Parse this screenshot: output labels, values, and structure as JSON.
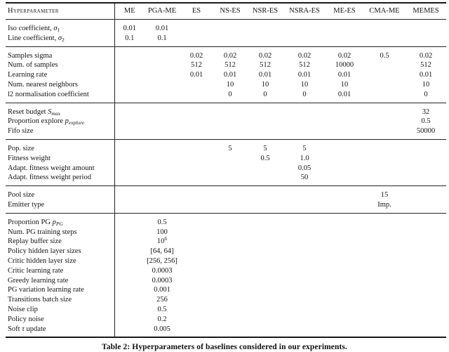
{
  "caption": "Table 2: Hyperparameters of baselines considered in our experiments.",
  "table": {
    "header": [
      "Hyperparameter",
      "ME",
      "PGA-ME",
      "ES",
      "NS-ES",
      "NSR-ES",
      "NSRA-ES",
      "ME-ES",
      "CMA-ME",
      "MEMES"
    ],
    "sections": [
      {
        "rows": [
          {
            "label": "Iso coefficient, <i>&sigma;</i><sub>1</sub>",
            "values": [
              "0.01",
              "0.01",
              "",
              "",
              "",
              "",
              "",
              "",
              ""
            ]
          },
          {
            "label": "Line coefficient, <i>&sigma;</i><sub>2</sub>",
            "values": [
              "0.1",
              "0.1",
              "",
              "",
              "",
              "",
              "",
              "",
              ""
            ]
          }
        ]
      },
      {
        "rows": [
          {
            "label": "Samples sigma",
            "values": [
              "",
              "",
              "0.02",
              "0.02",
              "0.02",
              "0.02",
              "0.02",
              "0.5",
              "0.02"
            ]
          },
          {
            "label": "Num. of samples",
            "values": [
              "",
              "",
              "512",
              "512",
              "512",
              "512",
              "10000",
              "",
              "512"
            ]
          },
          {
            "label": "Learning rate",
            "values": [
              "",
              "",
              "0.01",
              "0.01",
              "0.01",
              "0.01",
              "0.01",
              "",
              "0.01"
            ]
          },
          {
            "label": "Num. nearest neighbors",
            "values": [
              "",
              "",
              "",
              "10",
              "10",
              "10",
              "10",
              "",
              "10"
            ]
          },
          {
            "label": "l2 normalisation coefficient",
            "values": [
              "",
              "",
              "",
              "0",
              "0",
              "0",
              "0.01",
              "",
              "0"
            ]
          }
        ]
      },
      {
        "rows": [
          {
            "label": "Reset budget <i>S<sub>max</sub></i>",
            "values": [
              "",
              "",
              "",
              "",
              "",
              "",
              "",
              "",
              "32"
            ]
          },
          {
            "label": "Proportion explore <i>p<sub>explore</sub></i>",
            "values": [
              "",
              "",
              "",
              "",
              "",
              "",
              "",
              "",
              "0.5"
            ]
          },
          {
            "label": "Fifo size",
            "values": [
              "",
              "",
              "",
              "",
              "",
              "",
              "",
              "",
              "50000"
            ]
          }
        ]
      },
      {
        "rows": [
          {
            "label": "Pop. size",
            "values": [
              "",
              "",
              "",
              "5",
              "5",
              "5",
              "",
              "",
              ""
            ]
          },
          {
            "label": "Fitness weight",
            "values": [
              "",
              "",
              "",
              "",
              "0.5",
              "1.0",
              "",
              "",
              ""
            ]
          },
          {
            "label": "Adapt. fitness weight amount",
            "values": [
              "",
              "",
              "",
              "",
              "",
              "0.05",
              "",
              "",
              ""
            ]
          },
          {
            "label": "Adapt. fitness weight period",
            "values": [
              "",
              "",
              "",
              "",
              "",
              "50",
              "",
              "",
              ""
            ]
          }
        ]
      },
      {
        "rows": [
          {
            "label": "Pool size",
            "values": [
              "",
              "",
              "",
              "",
              "",
              "",
              "",
              "15",
              ""
            ]
          },
          {
            "label": "Emitter type",
            "values": [
              "",
              "",
              "",
              "",
              "",
              "",
              "",
              "Imp.",
              ""
            ]
          }
        ]
      },
      {
        "rows": [
          {
            "label": "Proportion PG <i>p<sub>PG</sub></i>",
            "values": [
              "",
              "0.5",
              "",
              "",
              "",
              "",
              "",
              "",
              ""
            ]
          },
          {
            "label": "Num. PG training steps",
            "values": [
              "",
              "100",
              "",
              "",
              "",
              "",
              "",
              "",
              ""
            ]
          },
          {
            "label": "Replay buffer size",
            "values": [
              "",
              "10<sup>6</sup>",
              "",
              "",
              "",
              "",
              "",
              "",
              ""
            ]
          },
          {
            "label": "Policy hidden layer sizes",
            "values": [
              "",
              "[64, 64]",
              "",
              "",
              "",
              "",
              "",
              "",
              ""
            ]
          },
          {
            "label": "Critic hidden layer size",
            "values": [
              "",
              "[256, 256]",
              "",
              "",
              "",
              "",
              "",
              "",
              ""
            ]
          },
          {
            "label": "Critic learning rate",
            "values": [
              "",
              "0.0003",
              "",
              "",
              "",
              "",
              "",
              "",
              ""
            ]
          },
          {
            "label": "Greedy learning rate",
            "values": [
              "",
              "0.0003",
              "",
              "",
              "",
              "",
              "",
              "",
              ""
            ]
          },
          {
            "label": "PG variation learning rate",
            "values": [
              "",
              "0.001",
              "",
              "",
              "",
              "",
              "",
              "",
              ""
            ]
          },
          {
            "label": "Transitions batch size",
            "values": [
              "",
              "256",
              "",
              "",
              "",
              "",
              "",
              "",
              ""
            ]
          },
          {
            "label": "Noise clip",
            "values": [
              "",
              "0.5",
              "",
              "",
              "",
              "",
              "",
              "",
              ""
            ]
          },
          {
            "label": "Policy noise",
            "values": [
              "",
              "0.2",
              "",
              "",
              "",
              "",
              "",
              "",
              ""
            ]
          },
          {
            "label": "Soft <i>&tau;</i> update",
            "values": [
              "",
              "0.005",
              "",
              "",
              "",
              "",
              "",
              "",
              ""
            ]
          }
        ]
      }
    ]
  }
}
